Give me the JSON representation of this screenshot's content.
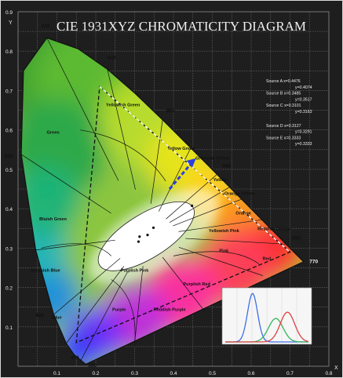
{
  "chart_data": {
    "type": "scatter",
    "title": "CIE 1931XYZ CHROMATICITY DIAGRAM",
    "xlabel": "x",
    "ylabel": "y",
    "xlim": [
      0.0,
      0.8
    ],
    "ylim": [
      0.0,
      0.9
    ],
    "grid": true,
    "x_ticks": [
      "0.1",
      "0.2",
      "0.3",
      "0.4",
      "0.5",
      "0.6",
      "0.7",
      "0.8"
    ],
    "y_ticks": [
      "0.1",
      "0.2",
      "0.3",
      "0.4",
      "0.5",
      "0.6",
      "0.7",
      "0.8",
      "0.9"
    ],
    "y_axis_label": "Y",
    "x_axis_label": "X",
    "spectral_locus": [
      {
        "nm": "380",
        "x": 0.1741,
        "y": 0.005
      },
      {
        "nm": "460",
        "x": 0.144,
        "y": 0.0297
      },
      {
        "nm": "470",
        "x": 0.1241,
        "y": 0.0578
      },
      {
        "nm": "480",
        "x": 0.0913,
        "y": 0.1327
      },
      {
        "nm": "490",
        "x": 0.0454,
        "y": 0.295
      },
      {
        "nm": "500",
        "x": 0.0082,
        "y": 0.5384
      },
      {
        "nm": "510",
        "x": 0.0139,
        "y": 0.7502
      },
      {
        "nm": "520",
        "x": 0.0743,
        "y": 0.8338
      },
      {
        "nm": "530",
        "x": 0.1547,
        "y": 0.8059
      },
      {
        "nm": "540",
        "x": 0.2296,
        "y": 0.7543
      },
      {
        "nm": "550",
        "x": 0.3016,
        "y": 0.6923
      },
      {
        "nm": "560",
        "x": 0.3731,
        "y": 0.6245
      },
      {
        "nm": "570",
        "x": 0.4441,
        "y": 0.5547
      },
      {
        "nm": "580",
        "x": 0.5125,
        "y": 0.4866
      },
      {
        "nm": "590",
        "x": 0.5752,
        "y": 0.4242
      },
      {
        "nm": "600",
        "x": 0.627,
        "y": 0.3725
      },
      {
        "nm": "620",
        "x": 0.6915,
        "y": 0.3083
      },
      {
        "nm": "640",
        "x": 0.719,
        "y": 0.2809
      },
      {
        "nm": "770",
        "x": 0.7347,
        "y": 0.2653
      }
    ],
    "wavelength_labels": [
      "520",
      "540",
      "560",
      "580",
      "500",
      "620",
      "770",
      "480",
      "460",
      "380"
    ],
    "gamut_triangle": [
      {
        "x": 0.21,
        "y": 0.71
      },
      {
        "x": 0.7,
        "y": 0.29
      },
      {
        "x": 0.15,
        "y": 0.06
      }
    ],
    "white_dashed_line": [
      {
        "x": 0.21,
        "y": 0.71
      },
      {
        "x": 0.7,
        "y": 0.29
      }
    ],
    "blue_arrow": {
      "from": {
        "x": 0.39,
        "y": 0.45
      },
      "to": {
        "x": 0.45,
        "y": 0.52
      }
    },
    "region_labels": [
      "Yellowish Green",
      "Green",
      "Yellow Green",
      "Greenish Yellow",
      "Yellow",
      "Orange Yellow",
      "Orange",
      "Yellowish Pink",
      "Reddish Orange",
      "Bluish Green",
      "Pink",
      "Red",
      "Greenish Blue",
      "Purplish Pink",
      "Purplish Red",
      "Blue",
      "Purple",
      "Reddish Purple"
    ],
    "source_legend": [
      "Source A  x=0.4476",
      "y=0.4074",
      "Source B  x=0.3485",
      "y=0.3517",
      "Source C  x=0.3101",
      "y=0.3163",
      "Source D  x=0.3127",
      "y=0.3291",
      "Source E  x=0.3333",
      "y=0.3333"
    ],
    "white_points": [
      {
        "x": 0.4476,
        "y": 0.4074
      },
      {
        "x": 0.3485,
        "y": 0.3517
      },
      {
        "x": 0.3101,
        "y": 0.3163
      },
      {
        "x": 0.3127,
        "y": 0.3291
      },
      {
        "x": 0.3333,
        "y": 0.3333
      }
    ],
    "inset": {
      "type": "line",
      "series": [
        {
          "color": "#3d6ee8",
          "peak_index": 2
        },
        {
          "color": "#34b55a",
          "peak_index": 4
        },
        {
          "color": "#e04040",
          "peak_index": 5
        }
      ]
    }
  }
}
